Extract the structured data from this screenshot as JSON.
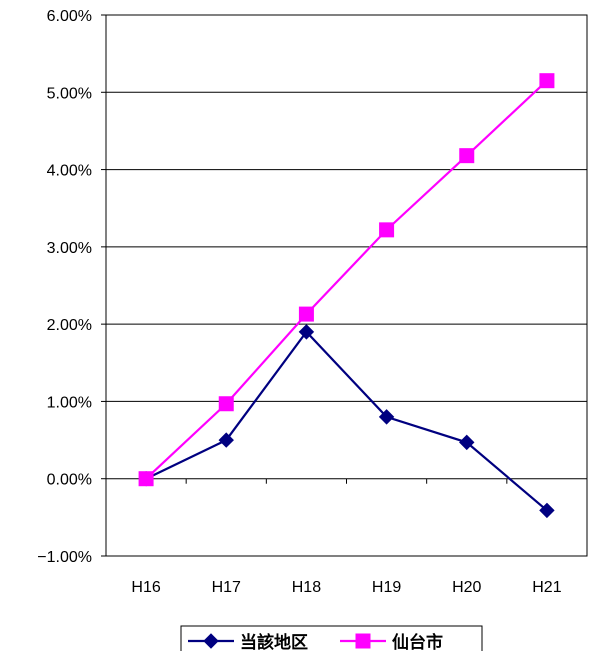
{
  "chart_data": {
    "type": "line",
    "categories": [
      "H16",
      "H17",
      "H18",
      "H19",
      "H20",
      "H21"
    ],
    "series": [
      {
        "name": "当該地区",
        "values": [
          0.0,
          0.5,
          1.9,
          0.8,
          0.47,
          -0.41
        ],
        "color": "#000080",
        "marker": "diamond"
      },
      {
        "name": "仙台市",
        "values": [
          0.0,
          0.97,
          2.13,
          3.22,
          4.18,
          5.15
        ],
        "color": "#ff00ff",
        "marker": "square"
      }
    ],
    "ylim": [
      -1.0,
      6.0
    ],
    "yticks": [
      -1.0,
      0.0,
      1.0,
      2.0,
      3.0,
      4.0,
      5.0,
      6.0
    ],
    "ytick_labels": [
      "−1.00%",
      "0.00%",
      "1.00%",
      "2.00%",
      "3.00%",
      "4.00%",
      "5.00%",
      "6.00%"
    ],
    "title": "",
    "xlabel": "",
    "ylabel": "",
    "grid": true,
    "legend_position": "bottom"
  }
}
